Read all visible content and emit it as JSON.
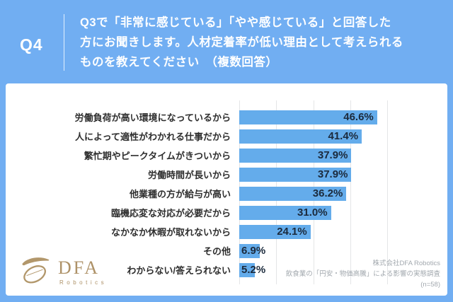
{
  "header": {
    "q_label": "Q4",
    "question_lines": [
      "Q3で「非常に感じている」「やや感じている」と回答した",
      "方にお聞きします。人材定着率が低い理由として考えられる",
      "ものを教えてください　（複数回答）"
    ]
  },
  "chart_data": {
    "type": "bar",
    "orientation": "horizontal",
    "title": "",
    "categories": [
      "労働負荷が高い環境になっているから",
      "人によって適性がわかれる仕事だから",
      "繁忙期やピークタイムがきついから",
      "労働時間が長いから",
      "他業種の方が給与が高い",
      "臨機応変な対応が必要だから",
      "なかなか休暇が取れないから",
      "その他",
      "わからない/答えられない"
    ],
    "values": [
      46.6,
      41.4,
      37.9,
      37.9,
      36.2,
      31.0,
      24.1,
      6.9,
      5.2
    ],
    "value_labels": [
      "46.6%",
      "41.4%",
      "37.9%",
      "37.9%",
      "36.2%",
      "31.0%",
      "24.1%",
      "6.9%",
      "5.2%"
    ],
    "xlim": [
      0,
      50
    ],
    "grid": true,
    "gridline_count": 5,
    "bar_color": "#64ACEB",
    "legend": "none"
  },
  "footer": {
    "logo": {
      "brand": "DFA",
      "sub": "Robotics",
      "icon": "dfa-swoosh-logo-icon",
      "color": "#AE9268"
    },
    "source_lines": [
      "株式会社DFA Robotics",
      "飲食業の「円安・物価高騰」による影響の実態調査",
      "(n=58)"
    ]
  },
  "colors": {
    "background": "#71AEF2",
    "card": "#FFFFFF",
    "bar": "#64ACEB",
    "grid": "#E4E5E7",
    "value_text": "#1B2A3C",
    "category_text": "#2E2E2E",
    "source_text": "#A2A8AE",
    "logo_gold": "#AE9268"
  }
}
